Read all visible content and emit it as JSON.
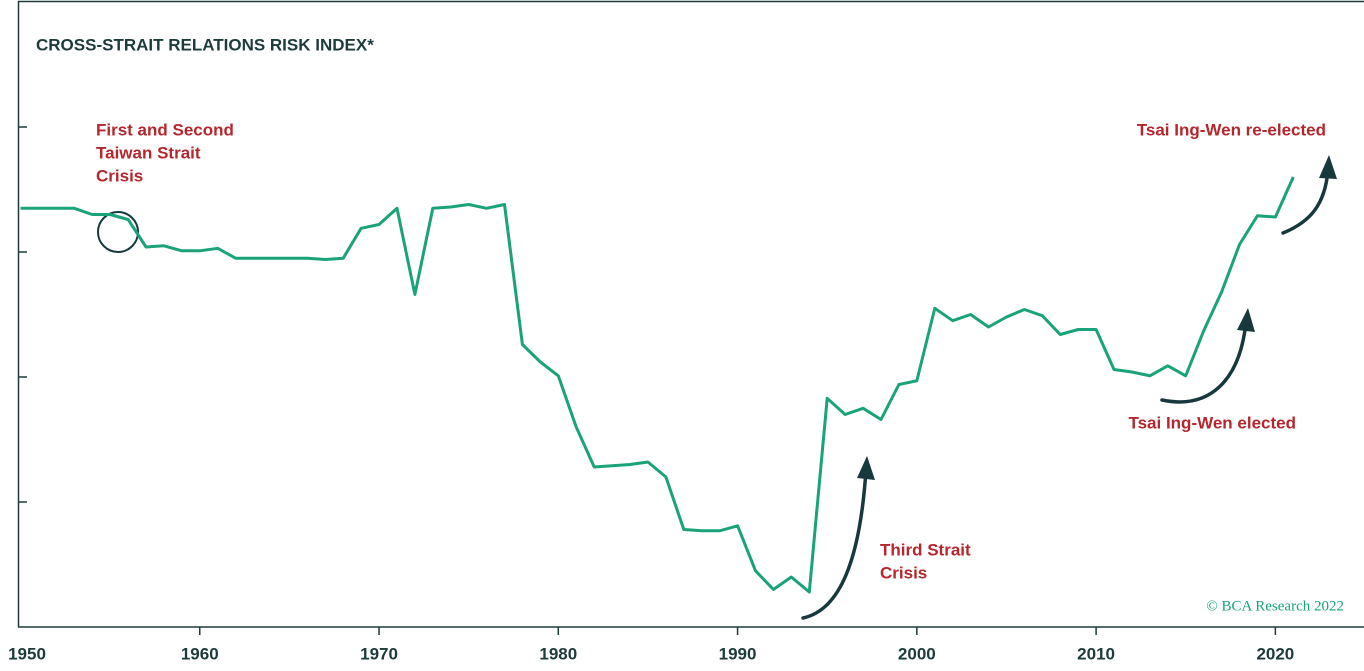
{
  "chart_data": {
    "type": "line",
    "title": "CROSS-STRAIT RELATIONS RISK INDEX*",
    "x": [
      1950,
      1951,
      1952,
      1953,
      1954,
      1955,
      1956,
      1957,
      1958,
      1959,
      1960,
      1961,
      1962,
      1963,
      1964,
      1965,
      1966,
      1967,
      1968,
      1969,
      1970,
      1971,
      1972,
      1973,
      1974,
      1975,
      1976,
      1977,
      1978,
      1979,
      1980,
      1981,
      1982,
      1983,
      1984,
      1985,
      1986,
      1987,
      1988,
      1989,
      1990,
      1991,
      1992,
      1993,
      1994,
      1995,
      1996,
      1997,
      1998,
      1999,
      2000,
      2001,
      2002,
      2003,
      2004,
      2005,
      2006,
      2007,
      2008,
      2009,
      2010,
      2011,
      2012,
      2013,
      2014,
      2015,
      2016,
      2017,
      2018,
      2019,
      2020,
      2021
    ],
    "series": [
      {
        "name": "Cross-Strait Relations Risk Index",
        "color": "#1aa37a",
        "values": [
          3.35,
          3.35,
          3.35,
          3.35,
          3.3,
          3.3,
          3.26,
          3.04,
          3.05,
          3.01,
          3.01,
          3.03,
          2.95,
          2.95,
          2.95,
          2.95,
          2.95,
          2.94,
          2.95,
          3.19,
          3.22,
          3.35,
          2.66,
          3.35,
          3.36,
          3.38,
          3.35,
          3.38,
          2.26,
          2.12,
          2.01,
          1.6,
          1.28,
          1.29,
          1.3,
          1.32,
          1.2,
          0.78,
          0.77,
          0.77,
          0.81,
          0.45,
          0.3,
          0.4,
          0.28,
          1.83,
          1.7,
          1.75,
          1.66,
          1.94,
          1.97,
          2.55,
          2.45,
          2.5,
          2.4,
          2.48,
          2.54,
          2.49,
          2.34,
          2.38,
          2.38,
          2.06,
          2.04,
          2.01,
          2.09,
          2.01,
          2.37,
          2.68,
          3.06,
          3.29,
          3.28,
          3.6
        ]
      }
    ],
    "xlim": [
      1950,
      2025
    ],
    "xticks": [
      1950,
      1960,
      1970,
      1980,
      1990,
      2000,
      2010,
      2020
    ],
    "ylim": [
      0,
      5
    ],
    "yticks": [
      1,
      2,
      3,
      4
    ],
    "annotations": [
      {
        "lines": [
          "First and Second",
          "Taiwan Strait",
          "Crisis"
        ]
      },
      {
        "lines": [
          "Third Strait",
          "Crisis"
        ]
      },
      {
        "lines": [
          "Tsai Ing-Wen elected"
        ]
      },
      {
        "lines": [
          "Tsai Ing-Wen re-elected"
        ]
      }
    ],
    "source": "© BCA Research 2022"
  }
}
